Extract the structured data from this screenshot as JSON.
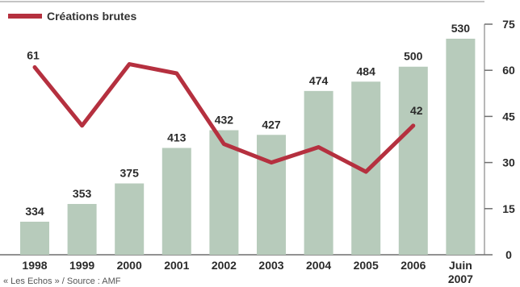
{
  "chart_data": {
    "type": "bar",
    "categories": [
      "1998",
      "1999",
      "2000",
      "2001",
      "2002",
      "2003",
      "2004",
      "2005",
      "2006",
      "Juin 2007"
    ],
    "series": [
      {
        "kind": "bar",
        "values": [
          334,
          353,
          375,
          413,
          432,
          427,
          474,
          484,
          500,
          530
        ],
        "labels": [
          "334",
          "353",
          "375",
          "413",
          "432",
          "427",
          "474",
          "484",
          "500",
          "530"
        ],
        "color": "#b7cbbb"
      },
      {
        "kind": "line",
        "name": "Créations brutes",
        "values": [
          61,
          42,
          62,
          59,
          36,
          30,
          35,
          27,
          42,
          null
        ],
        "labels": [
          "61",
          "",
          "",
          "",
          "",
          "",
          "",
          "",
          "42",
          ""
        ],
        "color": "#b5303f"
      }
    ],
    "y_right_ticks": [
      "0",
      "15",
      "30",
      "45",
      "60",
      "75"
    ],
    "y_right_range": [
      0,
      75
    ],
    "bar_range_note": "",
    "legend": {
      "label": "Créations brutes",
      "position": "top-left"
    },
    "grid": false,
    "source": "« Les Echos » / Source : AMF"
  },
  "colors": {
    "bar": "#b7cbbb",
    "line": "#b5303f",
    "axis": "#6f6f6f",
    "text": "#2a2a2a"
  }
}
